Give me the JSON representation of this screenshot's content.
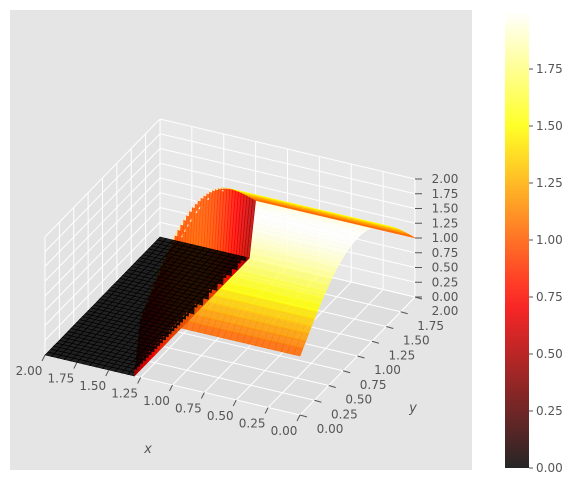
{
  "chart_data": {
    "type": "surface-3d",
    "title": "",
    "xlabel": "x",
    "ylabel": "y",
    "zlabel": "",
    "xlim": [
      0,
      2
    ],
    "ylim": [
      0,
      2
    ],
    "zlim": [
      0,
      2
    ],
    "x_ticks": [
      "0.00",
      "0.25",
      "0.50",
      "0.75",
      "1.00",
      "1.25",
      "1.50",
      "1.75",
      "2.00"
    ],
    "y_ticks": [
      "0.00",
      "0.25",
      "0.50",
      "0.75",
      "1.00",
      "1.25",
      "1.50",
      "1.75",
      "2.00"
    ],
    "z_ticks": [
      "0.00",
      "0.25",
      "0.50",
      "0.75",
      "1.00",
      "1.25",
      "1.50",
      "1.75",
      "2.00"
    ],
    "colorbar": {
      "colormap": "hot",
      "min": 0,
      "max": 2,
      "ticks": [
        "0.00",
        "0.25",
        "0.50",
        "0.75",
        "1.00",
        "1.25",
        "1.50",
        "1.75"
      ]
    },
    "surface": {
      "description": "u(x,y) = 1 + sin(pi*y/2) for x <= 1.25, 0 for x > 1.25",
      "shock_x": 1.25,
      "grid": 41
    },
    "grid": true,
    "pane_color": "#e5e5e5"
  }
}
